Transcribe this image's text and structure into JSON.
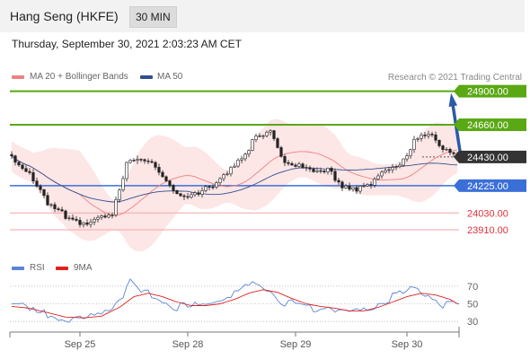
{
  "header": {
    "title": "Hang Seng (HKFE)",
    "interval": "30 MIN",
    "datetime": "Thursday, September 30, 2021 2:03:23 AM CET"
  },
  "legend": {
    "ma20_label": "MA 20 + Bollinger Bands",
    "ma50_label": "MA 50",
    "copyright": "Research © 2021 Trading Central",
    "rsi_label": "RSI",
    "ma9_label": "9MA"
  },
  "colors": {
    "resistance": "#5aa814",
    "current": "#333333",
    "pivot": "#3b6fd8",
    "support": "#e0303a",
    "bollinger_fill": "#fde3e3",
    "ma20": "#f08080",
    "ma50": "#2f4f8f",
    "rsi": "#5b84d6",
    "rsi_ma": "#e02020",
    "arrow": "#2b5aa6"
  },
  "chart_data": [
    {
      "type": "candlestick",
      "levels": [
        {
          "value": 24900,
          "label": "24900.00",
          "kind": "resistance"
        },
        {
          "value": 24660,
          "label": "24660.00",
          "kind": "resistance"
        },
        {
          "value": 24430,
          "label": "24430.00",
          "kind": "current"
        },
        {
          "value": 24225,
          "label": "24225.00",
          "kind": "pivot"
        },
        {
          "value": 24030,
          "label": "24030.00",
          "kind": "support"
        },
        {
          "value": 23910,
          "label": "23910.00",
          "kind": "support"
        }
      ],
      "x_ticks": [
        "Sep 25",
        "Sep 28",
        "Sep 29",
        "Sep 30"
      ],
      "ylim": [
        23820,
        25000
      ],
      "n_bars": 125,
      "price_path": [
        [
          0,
          24425
        ],
        [
          5,
          24330
        ],
        [
          10,
          24080
        ],
        [
          15,
          24005
        ],
        [
          20,
          23960
        ],
        [
          24,
          23980
        ],
        [
          28,
          24000
        ],
        [
          32,
          24400
        ],
        [
          36,
          24430
        ],
        [
          40,
          24350
        ],
        [
          44,
          24220
        ],
        [
          48,
          24160
        ],
        [
          52,
          24180
        ],
        [
          56,
          24210
        ],
        [
          60,
          24330
        ],
        [
          64,
          24440
        ],
        [
          68,
          24560
        ],
        [
          72,
          24600
        ],
        [
          76,
          24390
        ],
        [
          80,
          24380
        ],
        [
          84,
          24300
        ],
        [
          88,
          24330
        ],
        [
          92,
          24230
        ],
        [
          96,
          24210
        ],
        [
          100,
          24220
        ],
        [
          104,
          24350
        ],
        [
          108,
          24380
        ],
        [
          112,
          24540
        ],
        [
          116,
          24590
        ],
        [
          120,
          24500
        ],
        [
          124,
          24460
        ]
      ]
    },
    {
      "type": "line",
      "title": "RSI",
      "yticks": [
        70,
        50,
        30
      ],
      "ylim": [
        20,
        80
      ],
      "rsi_path": [
        [
          0,
          52
        ],
        [
          5,
          42
        ],
        [
          10,
          38
        ],
        [
          15,
          33
        ],
        [
          20,
          32
        ],
        [
          25,
          40
        ],
        [
          30,
          55
        ],
        [
          33,
          74
        ],
        [
          36,
          62
        ],
        [
          40,
          60
        ],
        [
          44,
          48
        ],
        [
          48,
          46
        ],
        [
          52,
          47
        ],
        [
          56,
          53
        ],
        [
          60,
          58
        ],
        [
          64,
          66
        ],
        [
          68,
          72
        ],
        [
          72,
          68
        ],
        [
          76,
          50
        ],
        [
          80,
          50
        ],
        [
          84,
          44
        ],
        [
          88,
          48
        ],
        [
          92,
          40
        ],
        [
          96,
          40
        ],
        [
          100,
          45
        ],
        [
          104,
          55
        ],
        [
          108,
          60
        ],
        [
          112,
          66
        ],
        [
          116,
          62
        ],
        [
          120,
          50
        ],
        [
          124,
          48
        ]
      ],
      "ma_path": [
        [
          0,
          47
        ],
        [
          5,
          45
        ],
        [
          10,
          40
        ],
        [
          15,
          35
        ],
        [
          20,
          34
        ],
        [
          25,
          36
        ],
        [
          30,
          46
        ],
        [
          34,
          58
        ],
        [
          38,
          62
        ],
        [
          42,
          58
        ],
        [
          46,
          52
        ],
        [
          50,
          48
        ],
        [
          54,
          48
        ],
        [
          58,
          50
        ],
        [
          62,
          55
        ],
        [
          66,
          62
        ],
        [
          70,
          66
        ],
        [
          74,
          63
        ],
        [
          78,
          56
        ],
        [
          82,
          50
        ],
        [
          86,
          47
        ],
        [
          90,
          45
        ],
        [
          94,
          42
        ],
        [
          98,
          42
        ],
        [
          102,
          46
        ],
        [
          106,
          52
        ],
        [
          110,
          58
        ],
        [
          114,
          62
        ],
        [
          118,
          60
        ],
        [
          122,
          55
        ],
        [
          124,
          50
        ]
      ]
    }
  ]
}
